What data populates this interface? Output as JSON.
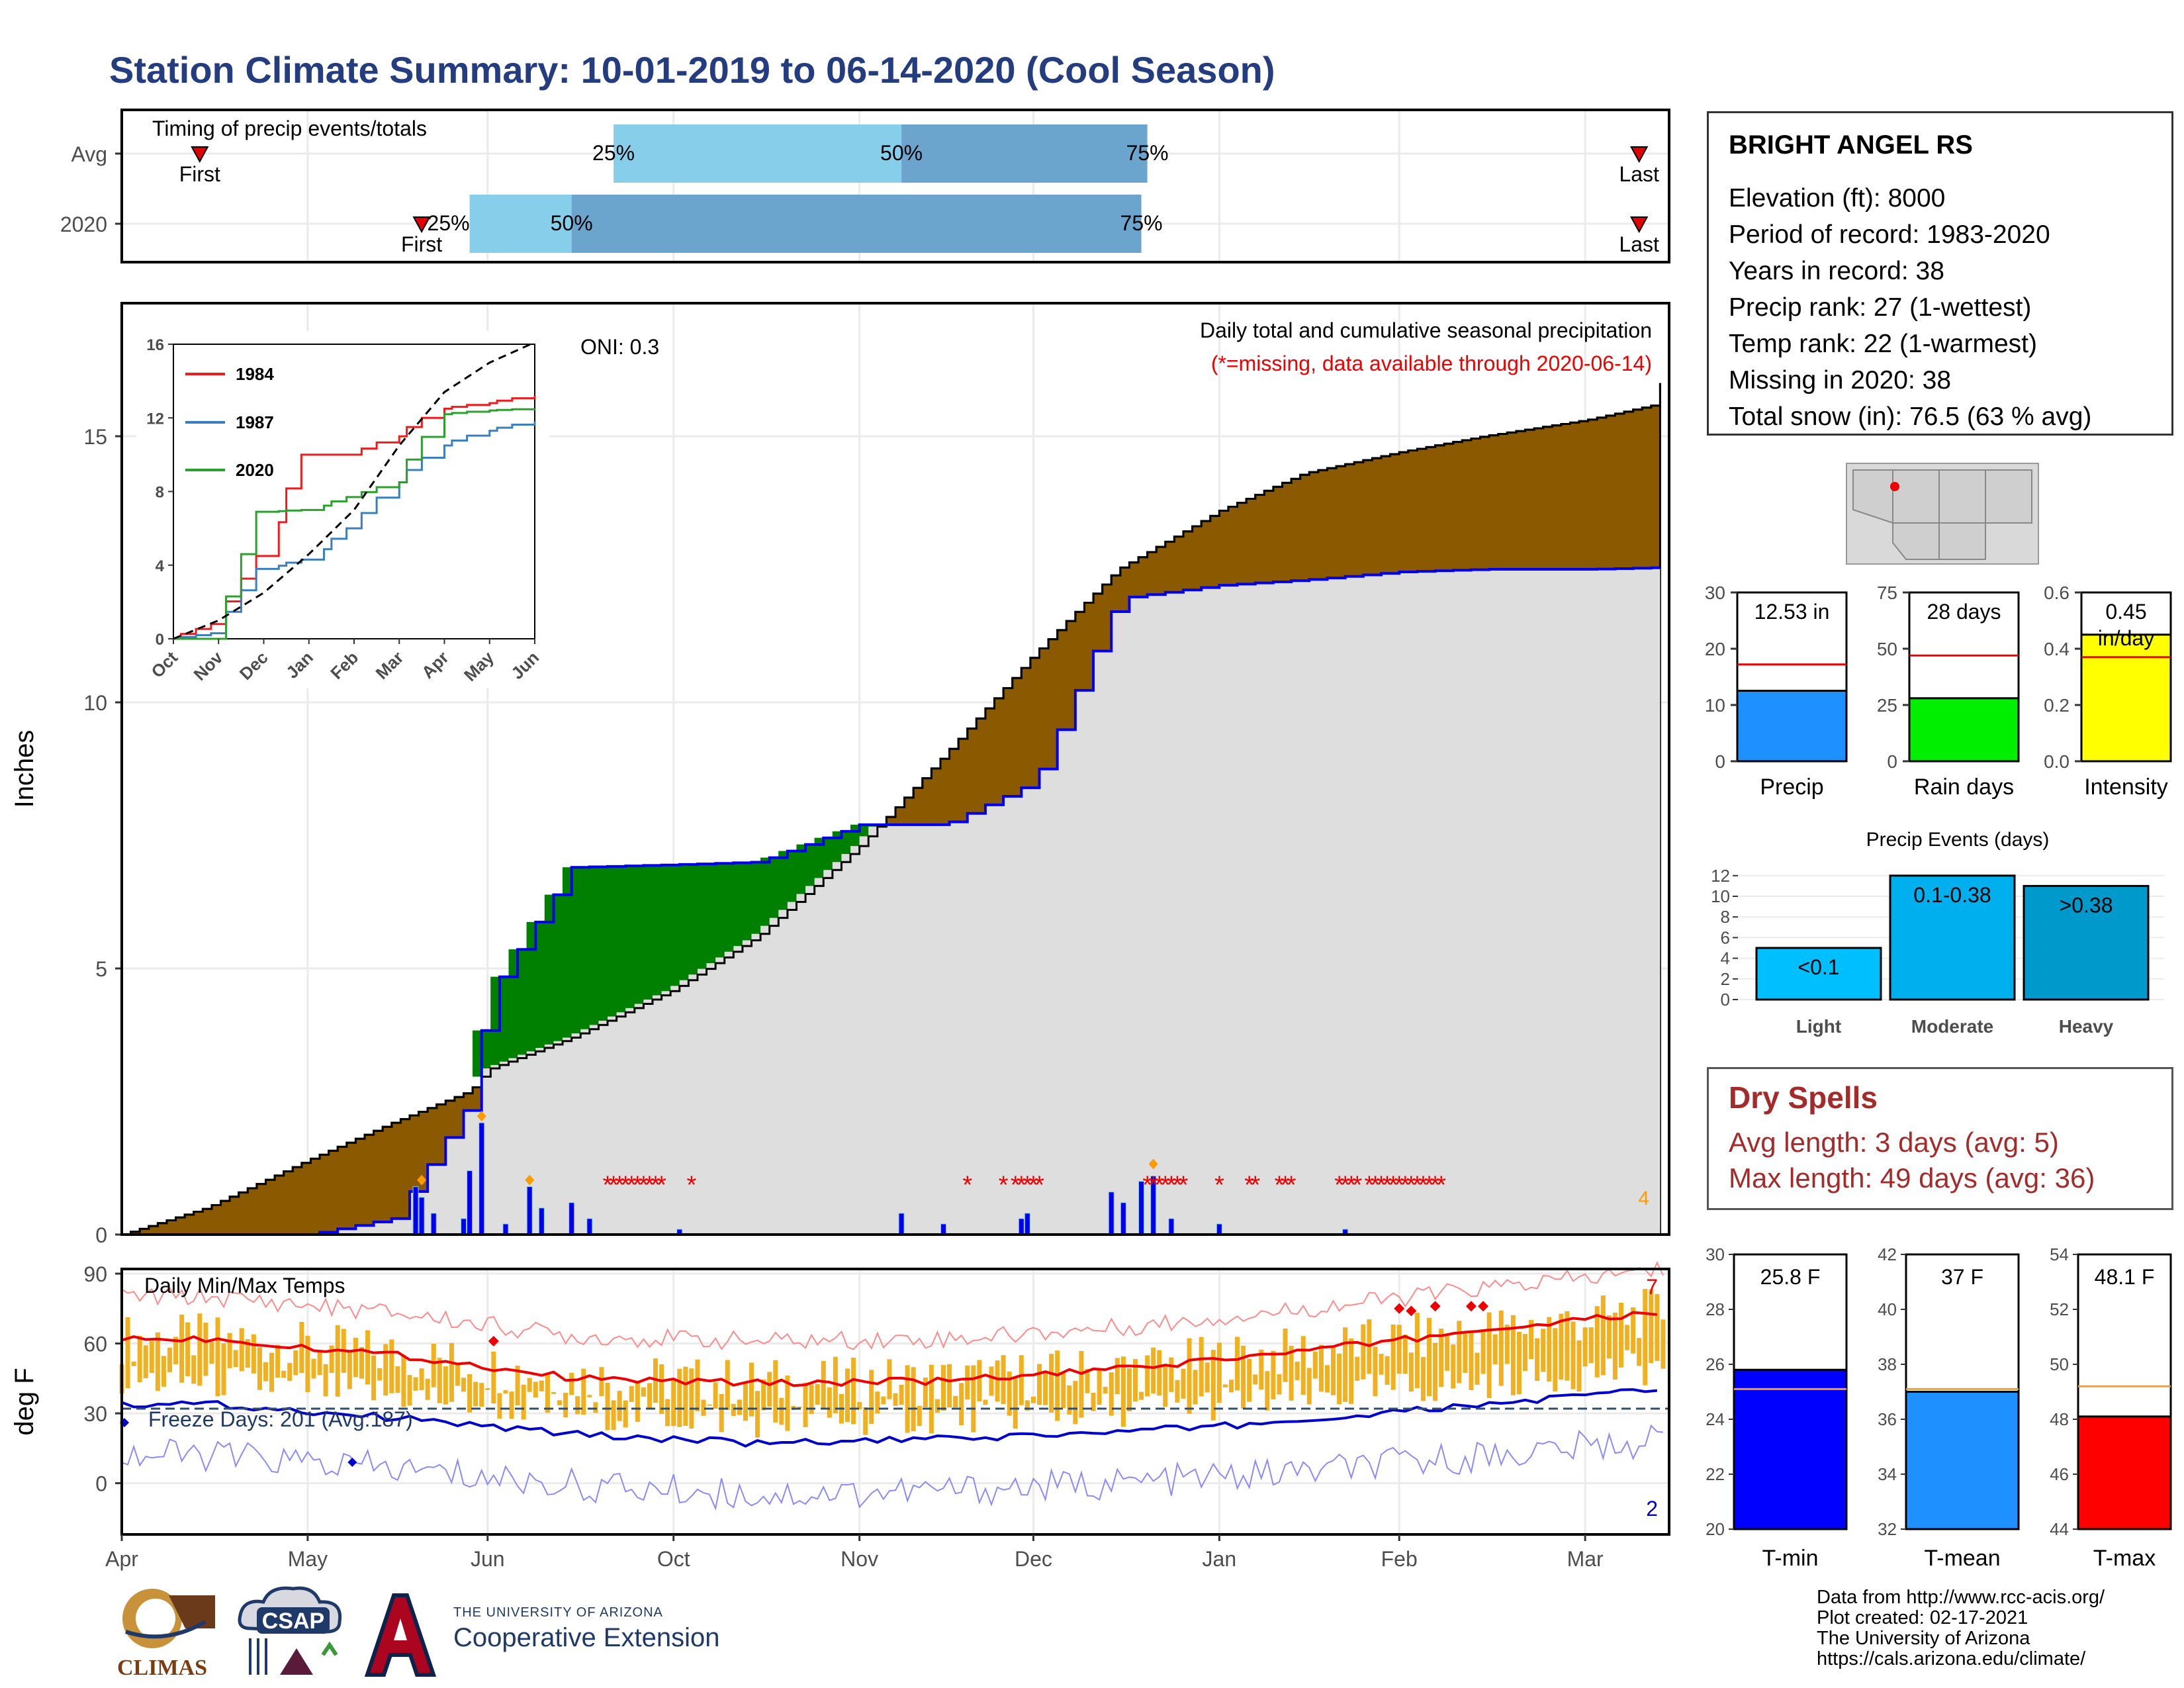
{
  "title": "Station Climate Summary: 10-01-2019 to 06-14-2020 (Cool Season)",
  "colors": {
    "title": "#243c80",
    "precip_fill": "#8b5a00",
    "surplus_fill": "#008000",
    "cum_gray": "#dedede",
    "blue_line": "#0000ee",
    "timing_light": "#87ceeb",
    "timing_dark": "#6ba4cc",
    "tmax_bar": "#f0b020",
    "tmax_line": "#ee0000",
    "tmin_line": "#0000cc"
  },
  "timing": {
    "label": "Timing of precip events/totals",
    "rows": [
      {
        "name": "Avg",
        "first_label": "First",
        "last_label": "Last",
        "first": "10-14",
        "last": "06-10",
        "q25": "12-22",
        "q50": "02-08",
        "q75": "03-20",
        "q25_label": "25%",
        "q50_label": "50%",
        "q75_label": "75%"
      },
      {
        "name": "2020",
        "first_label": "First",
        "last_label": "Last",
        "first": "11-20",
        "last": "06-10",
        "q25": "11-28",
        "q50": "12-15",
        "q75": "03-19",
        "q25_label": "25%",
        "q50_label": "50%",
        "q75_label": "75%"
      }
    ]
  },
  "precip_panel": {
    "ylabel": "Inches",
    "oni": "ONI: 0.3",
    "legend_title": "Daily total and cumulative seasonal precipitation",
    "missing_note": "(*=missing, data available through 2020-06-14)",
    "corner_count": "4",
    "yticks": [
      "0",
      "5",
      "10",
      "15"
    ]
  },
  "inset": {
    "series_1984": "1984",
    "series_1987": "1987",
    "series_2020": "2020",
    "yticks": [
      "0",
      "4",
      "8",
      "12",
      "16"
    ],
    "xticks": [
      "Oct",
      "Nov",
      "Dec",
      "Jan",
      "Feb",
      "Mar",
      "Apr",
      "May",
      "Jun"
    ]
  },
  "temp_panel": {
    "title": "Daily Min/Max Temps",
    "ylabel": "deg F",
    "freeze": "Freeze Days: 201 (Avg:187)",
    "top_count": "7",
    "bottom_count": "2",
    "yticks": [
      "0",
      "30",
      "60",
      "90"
    ]
  },
  "months": [
    "Oct",
    "Nov",
    "Dec",
    "Jan",
    "Feb",
    "Mar",
    "Apr",
    "May",
    "Jun"
  ],
  "station": {
    "name": "BRIGHT ANGEL RS",
    "lines": [
      "Elevation (ft): 8000",
      "Period of record: 1983-2020",
      "Years in record: 38",
      "Precip rank: 27 (1-wettest)",
      "Temp rank: 22 (1-warmest)",
      "Missing in 2020: 38",
      "Total snow (in): 76.5 (63 % avg)"
    ]
  },
  "summary_bars": [
    {
      "label": "Precip",
      "value_label": "12.53 in",
      "value": 12.53,
      "avg": 17.2,
      "ymax": 30,
      "yticks": [
        "0",
        "10",
        "20",
        "30"
      ],
      "tickvals": [
        0,
        10,
        20,
        30
      ],
      "color": "#1e90ff"
    },
    {
      "label": "Rain days",
      "value_label": "28 days",
      "value": 28,
      "avg": 47,
      "ymax": 75,
      "yticks": [
        "0",
        "25",
        "50",
        "75"
      ],
      "tickvals": [
        0,
        25,
        50,
        75
      ],
      "color": "#00ee00"
    },
    {
      "label": "Intensity",
      "value_label": "0.45 in/day",
      "value": 0.45,
      "avg": 0.37,
      "ymax": 0.6,
      "yticks": [
        "0.0",
        "0.2",
        "0.4",
        "0.6"
      ],
      "tickvals": [
        0,
        0.2,
        0.4,
        0.6
      ],
      "color": "#ffff00"
    }
  ],
  "precip_events": {
    "title": "Precip Events (days)",
    "yticks": [
      "0",
      "2",
      "4",
      "6",
      "8",
      "10",
      "12"
    ],
    "bars": [
      {
        "category": "Light",
        "range": "<0.1",
        "value": 5,
        "color": "#00bfff"
      },
      {
        "category": "Moderate",
        "range": "0.1-0.38",
        "value": 12,
        "color": "#00b0ee"
      },
      {
        "category": "Heavy",
        "range": ">0.38",
        "value": 11,
        "color": "#0099cc"
      }
    ]
  },
  "dry_spells": {
    "title": "Dry Spells",
    "avg": "Avg length: 3 days (avg: 5)",
    "max": "Max length: 49 days (avg: 36)"
  },
  "temp_bars": [
    {
      "label": "T-min",
      "value_label": "25.8 F",
      "value": 25.8,
      "avg": 25.1,
      "ymin": 20,
      "ymax": 30,
      "yticks": [
        "20",
        "22",
        "24",
        "26",
        "28",
        "30"
      ],
      "color": "#0000ff"
    },
    {
      "label": "T-mean",
      "value_label": "37 F",
      "value": 37,
      "avg": 37.1,
      "ymin": 32,
      "ymax": 42,
      "yticks": [
        "32",
        "34",
        "36",
        "38",
        "40",
        "42"
      ],
      "color": "#1e90ff"
    },
    {
      "label": "T-max",
      "value_label": "48.1 F",
      "value": 48.1,
      "avg": 49.2,
      "ymin": 44,
      "ymax": 54,
      "yticks": [
        "44",
        "46",
        "48",
        "50",
        "52",
        "54"
      ],
      "color": "#ff0000"
    }
  ],
  "footer": [
    "Data from http://www.rcc-acis.org/",
    "Plot created: 02-17-2021",
    "The University of Arizona",
    "https://cals.arizona.edu/climate/"
  ],
  "logos": {
    "climas": "CLIMAS",
    "csap": "CSAP",
    "ua_small": "THE UNIVERSITY OF ARIZONA",
    "ua_big": "Cooperative Extension"
  },
  "chart_data": [
    {
      "type": "area",
      "name": "cumulative precipitation",
      "x_dates": [
        "10-01",
        "10-15",
        "11-01",
        "11-15",
        "11-28",
        "12-01",
        "12-15",
        "01-01",
        "01-15",
        "02-01",
        "02-15",
        "03-01",
        "03-15",
        "04-01",
        "04-15",
        "05-01",
        "05-15",
        "06-01",
        "06-13",
        "06-14"
      ],
      "average_cumulative": [
        0.0,
        0.5,
        1.4,
        2.1,
        2.7,
        3.1,
        3.7,
        4.6,
        5.6,
        7.3,
        9.0,
        10.9,
        12.5,
        13.6,
        14.3,
        14.7,
        15.0,
        15.3,
        15.6,
        16.4
      ],
      "season_cumulative": [
        0.0,
        0.0,
        0.0,
        0.3,
        2.5,
        4.5,
        6.9,
        6.95,
        7.0,
        7.7,
        7.7,
        8.5,
        11.95,
        12.2,
        12.3,
        12.45,
        12.5,
        12.5,
        12.53,
        12.53
      ],
      "ylabel": "Inches",
      "ylim": [
        0,
        17.5
      ]
    },
    {
      "type": "line",
      "name": "inset cumulative",
      "categories": [
        "Oct",
        "Nov",
        "Dec",
        "Jan",
        "Feb",
        "Mar",
        "Apr",
        "May",
        "Jun"
      ],
      "series": [
        {
          "name": "1984",
          "values": [
            0.0,
            0.8,
            4.5,
            10.0,
            10.0,
            11.0,
            12.5,
            12.8,
            13.2
          ]
        },
        {
          "name": "1987",
          "values": [
            0.0,
            0.3,
            3.8,
            4.3,
            6.0,
            8.5,
            10.5,
            11.3,
            11.8
          ]
        },
        {
          "name": "2020",
          "values": [
            0.0,
            0.0,
            6.9,
            7.0,
            7.7,
            8.5,
            12.2,
            12.4,
            12.5
          ]
        }
      ],
      "average_values": [
        0.0,
        1.0,
        2.5,
        4.6,
        7.0,
        10.5,
        13.4,
        15.0,
        16.1
      ],
      "ylim": [
        0,
        16
      ]
    },
    {
      "type": "line",
      "name": "daily temperatures",
      "categories": [
        "Oct",
        "Nov",
        "Dec",
        "Jan",
        "Feb",
        "Mar",
        "Apr",
        "May",
        "Jun"
      ],
      "series": [
        {
          "name": "avg max",
          "values": [
            62,
            55,
            45,
            43,
            44,
            49,
            57,
            66,
            74
          ]
        },
        {
          "name": "avg min",
          "values": [
            34,
            28,
            21,
            17,
            19,
            22,
            27,
            34,
            41
          ]
        }
      ],
      "freeze_line": 32,
      "ylabel": "deg F",
      "ylim": [
        -22,
        92
      ]
    },
    {
      "type": "bar",
      "name": "precip events",
      "categories": [
        "Light",
        "Moderate",
        "Heavy"
      ],
      "values": [
        5,
        12,
        11
      ],
      "ylim": [
        0,
        12.5
      ]
    }
  ]
}
